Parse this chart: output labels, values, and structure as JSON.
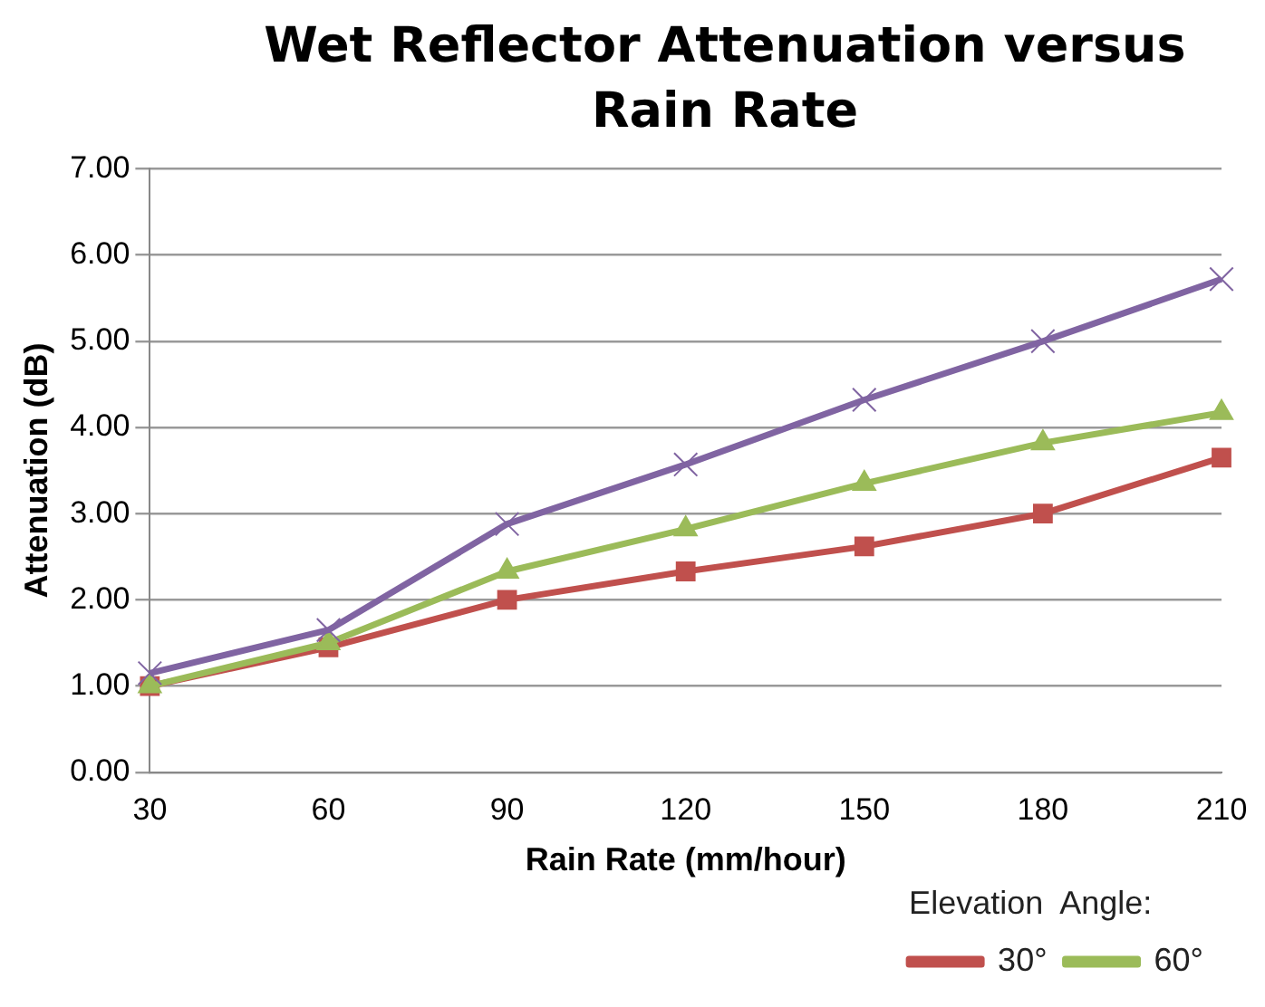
{
  "chart_data": {
    "type": "line",
    "title": "Wet Reflector Attenuation versus Rain Rate",
    "xlabel": "Rain Rate (mm/hour)",
    "ylabel": "Attenuation (dB)",
    "legend_title": "Elevation  Angle:",
    "categories": [
      "30",
      "60",
      "90",
      "120",
      "150",
      "180",
      "210"
    ],
    "series": [
      {
        "name": "30°",
        "color": "#c0504d",
        "marker": "square",
        "values": [
          1.0,
          1.45,
          2.0,
          2.33,
          2.62,
          3.0,
          3.65
        ]
      },
      {
        "name": "60°",
        "color": "#9bbb59",
        "marker": "triangle",
        "values": [
          1.0,
          1.5,
          2.33,
          2.82,
          3.35,
          3.82,
          4.17
        ]
      },
      {
        "color": "#8064a2",
        "marker": "cross",
        "values": [
          1.15,
          1.65,
          2.88,
          3.57,
          4.32,
          5.0,
          5.72
        ]
      }
    ],
    "ylim": [
      0,
      7
    ],
    "yticks": [
      {
        "value": 0,
        "label": "0.00"
      },
      {
        "value": 1,
        "label": "1.00"
      },
      {
        "value": 2,
        "label": "2.00"
      },
      {
        "value": 3,
        "label": "3.00"
      },
      {
        "value": 4,
        "label": "4.00"
      },
      {
        "value": 5,
        "label": "5.00"
      },
      {
        "value": 6,
        "label": "6.00"
      },
      {
        "value": 7,
        "label": "7.00"
      }
    ],
    "grid": "y",
    "legend": "bottom",
    "line_style": "solid"
  }
}
